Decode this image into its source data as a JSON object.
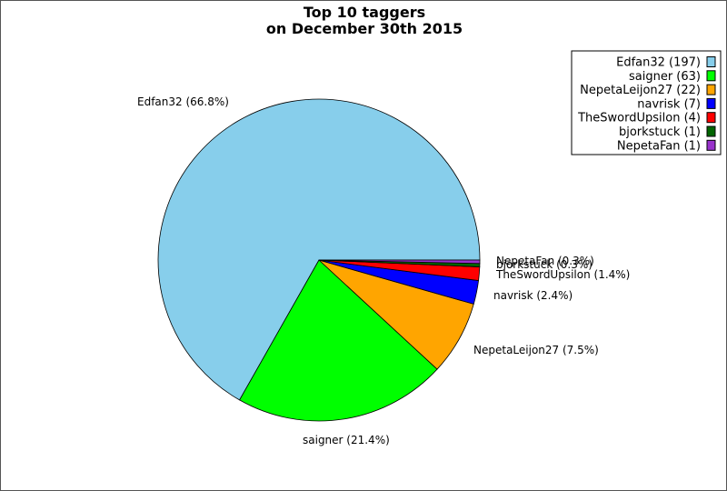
{
  "chart_data": {
    "type": "pie",
    "title_line1": "Top 10 taggers",
    "title_line2": "on December 30th 2015",
    "legend_placement": "top-right",
    "slices": [
      {
        "name": "Edfan32",
        "value": 197,
        "percent": 66.8,
        "label": "Edfan32 (66.8%)",
        "legend": "Edfan32 (197)",
        "color": "#87ceeb"
      },
      {
        "name": "saigner",
        "value": 63,
        "percent": 21.4,
        "label": "saigner (21.4%)",
        "legend": "saigner (63)",
        "color": "#00ff00"
      },
      {
        "name": "NepetaLeijon27",
        "value": 22,
        "percent": 7.5,
        "label": "NepetaLeijon27 (7.5%)",
        "legend": "NepetaLeijon27 (22)",
        "color": "#ffa500"
      },
      {
        "name": "navrisk",
        "value": 7,
        "percent": 2.4,
        "label": "navrisk (2.4%)",
        "legend": "navrisk (7)",
        "color": "#0000ff"
      },
      {
        "name": "TheSwordUpsilon",
        "value": 4,
        "percent": 1.4,
        "label": "TheSwordUpsilon (1.4%)",
        "legend": "TheSwordUpsilon (4)",
        "color": "#ff0000"
      },
      {
        "name": "bjorkstuck",
        "value": 1,
        "percent": 0.3,
        "label": "bjorkstuck (0.3%)",
        "legend": "bjorkstuck (1)",
        "color": "#006400"
      },
      {
        "name": "NepetaFan",
        "value": 1,
        "percent": 0.3,
        "label": "NepetaFan (0.3%)",
        "legend": "NepetaFan (1)",
        "color": "#9932cc"
      }
    ]
  }
}
